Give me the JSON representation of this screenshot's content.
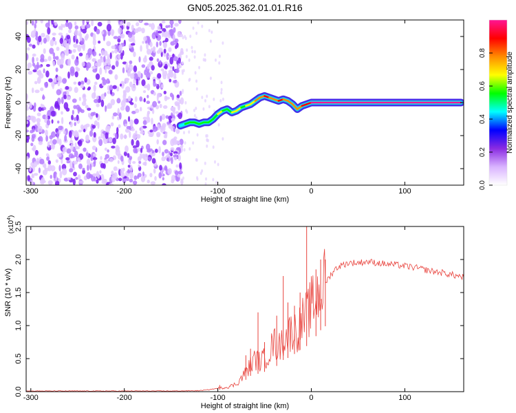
{
  "title": "GN05.2025.362.01.01.R16",
  "chart_data": [
    {
      "type": "heatmap",
      "xlabel": "Height of straight line (km)",
      "ylabel": "Frequency (Hz)",
      "xlim": [
        -305,
        163
      ],
      "ylim": [
        -50,
        50
      ],
      "xticks": [
        -300,
        -200,
        -100,
        0,
        100
      ],
      "yticks": [
        -40,
        -20,
        0,
        20,
        40
      ],
      "colorbar": {
        "label": "Normalized spectral amplitude",
        "range": [
          0,
          1
        ],
        "ticks": [
          "0.0",
          "0.2",
          "0.4",
          "0.6",
          "0.8"
        ],
        "colors": [
          "#ffffff",
          "#d9b3ff",
          "#8a2be2",
          "#0000ff",
          "#00ffff",
          "#00ff00",
          "#ffff00",
          "#ff8c00",
          "#ff0000",
          "#ff1493"
        ]
      },
      "noise_region_x": [
        -305,
        -138
      ],
      "trace": {
        "x": [
          -140,
          -135,
          -130,
          -125,
          -120,
          -115,
          -110,
          -105,
          -100,
          -95,
          -90,
          -85,
          -80,
          -75,
          -70,
          -65,
          -60,
          -55,
          -50,
          -45,
          -40,
          -35,
          -30,
          -25,
          -20,
          -15,
          -10,
          -5,
          0,
          10,
          50,
          100,
          160
        ],
        "y": [
          -14,
          -13,
          -12,
          -12,
          -13,
          -12,
          -12,
          -10,
          -7,
          -5,
          -4,
          -6,
          -5,
          -3,
          -2,
          -1,
          1,
          3,
          4,
          3,
          2,
          1,
          2,
          1,
          -1,
          -4,
          -2,
          -1,
          0,
          0,
          0,
          0,
          0
        ],
        "amp": [
          0.45,
          0.5,
          0.55,
          0.55,
          0.6,
          0.6,
          0.6,
          0.6,
          0.65,
          0.6,
          0.6,
          0.65,
          0.65,
          0.6,
          0.7,
          0.7,
          0.75,
          0.8,
          0.85,
          0.8,
          0.8,
          0.85,
          0.8,
          0.8,
          0.75,
          0.8,
          0.85,
          0.9,
          0.95,
          1.0,
          1.0,
          1.0,
          1.0
        ]
      }
    },
    {
      "type": "line",
      "xlabel": "Height of straight line (km)",
      "ylabel": "SNR (10 * v/v)",
      "yscale_label": "(x10",
      "yscale_exp": "4",
      "xlim": [
        -305,
        163
      ],
      "ylim": [
        0,
        2.5
      ],
      "xticks": [
        -300,
        -200,
        -100,
        0,
        100
      ],
      "yticks": [
        "0.0",
        "0.5",
        "1.0",
        "1.5",
        "2.0",
        "2.5"
      ],
      "color": "#e8413b",
      "series": [
        {
          "x": [
            -305,
            -250,
            -200,
            -150,
            -120,
            -110,
            -100,
            -95,
            -90,
            -85,
            -80,
            -75,
            -70,
            -65,
            -60,
            -55,
            -50,
            -45,
            -40,
            -35,
            -30,
            -25,
            -20,
            -15,
            -10,
            -5,
            0,
            5,
            10,
            15,
            20,
            25,
            30,
            40,
            50,
            60,
            70,
            80,
            90,
            100,
            110,
            120,
            130,
            140,
            150,
            163
          ],
          "y": [
            0.01,
            0.01,
            0.01,
            0.01,
            0.015,
            0.03,
            0.05,
            0.06,
            0.07,
            0.09,
            0.12,
            0.2,
            0.3,
            0.4,
            0.5,
            0.45,
            0.5,
            0.6,
            0.75,
            0.65,
            0.8,
            0.85,
            0.95,
            0.9,
            1.05,
            1.15,
            1.3,
            1.4,
            1.55,
            1.65,
            1.75,
            1.85,
            1.9,
            1.95,
            1.95,
            1.97,
            1.95,
            1.93,
            1.92,
            1.9,
            1.88,
            1.85,
            1.82,
            1.8,
            1.77,
            1.73
          ]
        }
      ],
      "spikes": [
        {
          "x": -98,
          "y": 0.1
        },
        {
          "x": -70,
          "y": 0.55
        },
        {
          "x": -65,
          "y": 0.65
        },
        {
          "x": -57,
          "y": 1.2
        },
        {
          "x": -50,
          "y": 0.75
        },
        {
          "x": -37,
          "y": 1.15
        },
        {
          "x": -30,
          "y": 1.75
        },
        {
          "x": -25,
          "y": 1.35
        },
        {
          "x": -18,
          "y": 1.3
        },
        {
          "x": -12,
          "y": 1.5
        },
        {
          "x": -5,
          "y": 2.55
        },
        {
          "x": 5,
          "y": 1.85
        },
        {
          "x": 10,
          "y": 2.0
        },
        {
          "x": 15,
          "y": 2.0
        }
      ]
    }
  ]
}
